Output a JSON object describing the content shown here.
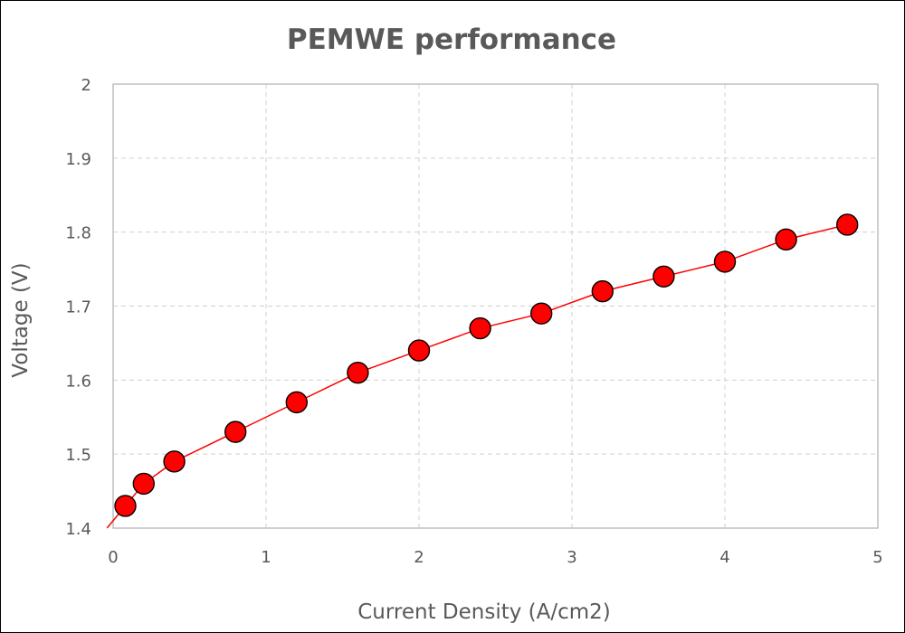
{
  "chart_data": {
    "type": "line",
    "title": "PEMWE performance",
    "xlabel": "Current Density (A/cm2)",
    "ylabel": "Voltage (V)",
    "xlim": [
      0,
      5
    ],
    "ylim": [
      1.4,
      2
    ],
    "xticks": [
      "0",
      "1",
      "2",
      "3",
      "4",
      "5"
    ],
    "yticks": [
      "1.4",
      "1.5",
      "1.6",
      "1.7",
      "1.8",
      "1.9",
      "2"
    ],
    "grid": true,
    "legend": "none",
    "series": [
      {
        "color": "#ff0000",
        "marker": "circle",
        "x": [
          0.08,
          0.2,
          0.4,
          0.8,
          1.2,
          1.6,
          2.0,
          2.4,
          2.8,
          3.2,
          3.6,
          4.0,
          4.4,
          4.8
        ],
        "y": [
          1.43,
          1.46,
          1.49,
          1.53,
          1.57,
          1.61,
          1.64,
          1.67,
          1.69,
          1.72,
          1.74,
          1.76,
          1.79,
          1.81
        ]
      }
    ],
    "line_extends_below_axis": true
  }
}
